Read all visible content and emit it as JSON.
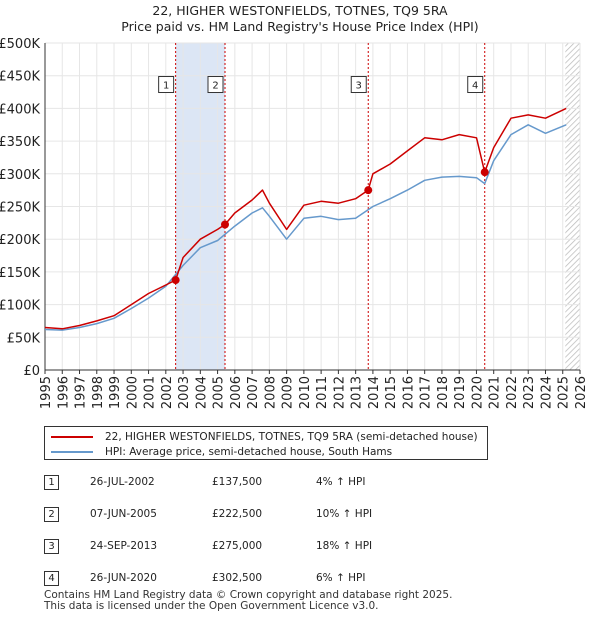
{
  "title_line1": "22, HIGHER WESTONFIELDS, TOTNES, TQ9 5RA",
  "title_line2": "Price paid vs. HM Land Registry's House Price Index (HPI)",
  "legend": {
    "series1": "22, HIGHER WESTONFIELDS, TOTNES, TQ9 5RA (semi-detached house)",
    "series2": "HPI: Average price, semi-detached house, South Hams"
  },
  "sales": [
    {
      "num": "1",
      "date": "26-JUL-2002",
      "price": "£137,500",
      "hpi": "4% ↑ HPI"
    },
    {
      "num": "2",
      "date": "07-JUN-2005",
      "price": "£222,500",
      "hpi": "10% ↑ HPI"
    },
    {
      "num": "3",
      "date": "24-SEP-2013",
      "price": "£275,000",
      "hpi": "18% ↑ HPI"
    },
    {
      "num": "4",
      "date": "26-JUN-2020",
      "price": "£302,500",
      "hpi": "6% ↑ HPI"
    }
  ],
  "footer_line1": "Contains HM Land Registry data © Crown copyright and database right 2025.",
  "footer_line2": "This data is licensed under the Open Government Licence v3.0.",
  "colors": {
    "red": "#cc0000",
    "blue": "#6699cc",
    "shade": "#dce6f5",
    "grid": "#e6e6e6"
  },
  "chart_data": {
    "type": "line",
    "xlim": [
      1995,
      2026
    ],
    "ylim": [
      0,
      500000
    ],
    "x_ticks": [
      "1995",
      "1996",
      "1997",
      "1998",
      "1999",
      "2000",
      "2001",
      "2002",
      "2003",
      "2004",
      "2005",
      "2006",
      "2007",
      "2008",
      "2009",
      "2010",
      "2011",
      "2012",
      "2013",
      "2014",
      "2015",
      "2016",
      "2017",
      "2018",
      "2019",
      "2020",
      "2021",
      "2022",
      "2023",
      "2024",
      "2025",
      "2026"
    ],
    "y_ticks": [
      {
        "value": 0,
        "label": "£0"
      },
      {
        "value": 50000,
        "label": "£50K"
      },
      {
        "value": 100000,
        "label": "£100K"
      },
      {
        "value": 150000,
        "label": "£150K"
      },
      {
        "value": 200000,
        "label": "£200K"
      },
      {
        "value": 250000,
        "label": "£250K"
      },
      {
        "value": 300000,
        "label": "£300K"
      },
      {
        "value": 350000,
        "label": "£350K"
      },
      {
        "value": 400000,
        "label": "£400K"
      },
      {
        "value": 450000,
        "label": "£450K"
      },
      {
        "value": 500000,
        "label": "£500K"
      }
    ],
    "shaded_ranges": [
      [
        2002.57,
        2005.43
      ],
      [
        2025.15,
        2026
      ]
    ],
    "sale_markers": [
      {
        "label": "1",
        "x": 2002.57,
        "y": 137500
      },
      {
        "label": "2",
        "x": 2005.43,
        "y": 222500
      },
      {
        "label": "3",
        "x": 2013.73,
        "y": 275000
      },
      {
        "label": "4",
        "x": 2020.48,
        "y": 302500
      }
    ],
    "series": [
      {
        "name": "22, HIGHER WESTONFIELDS, TOTNES, TQ9 5RA (semi-detached house)",
        "x": [
          1995,
          1996,
          1997,
          1998,
          1999,
          2000,
          2001,
          2002,
          2002.57,
          2003,
          2004,
          2005,
          2005.43,
          2006,
          2007,
          2007.6,
          2008,
          2009,
          2010,
          2011,
          2012,
          2013,
          2013.73,
          2014,
          2015,
          2016,
          2017,
          2018,
          2019,
          2020,
          2020.48,
          2021,
          2022,
          2023,
          2024,
          2025.2
        ],
        "values": [
          65000,
          63000,
          68000,
          75000,
          83000,
          100000,
          117000,
          130000,
          137500,
          172000,
          200000,
          215000,
          222500,
          240000,
          260000,
          275000,
          255000,
          215000,
          252000,
          258000,
          255000,
          262000,
          275000,
          300000,
          315000,
          335000,
          355000,
          352000,
          360000,
          355000,
          302500,
          340000,
          385000,
          390000,
          385000,
          400000
        ]
      },
      {
        "name": "HPI: Average price, semi-detached house, South Hams",
        "x": [
          1995,
          1996,
          1997,
          1998,
          1999,
          2000,
          2001,
          2002,
          2003,
          2004,
          2005,
          2006,
          2007,
          2007.6,
          2008,
          2009,
          2010,
          2011,
          2012,
          2013,
          2014,
          2015,
          2016,
          2017,
          2018,
          2019,
          2020,
          2020.48,
          2021,
          2022,
          2023,
          2024,
          2025.2
        ],
        "values": [
          62000,
          61000,
          65000,
          71000,
          79000,
          94000,
          110000,
          128000,
          160000,
          187000,
          198000,
          220000,
          240000,
          248000,
          235000,
          200000,
          232000,
          235000,
          230000,
          232000,
          250000,
          262000,
          275000,
          290000,
          295000,
          296000,
          294000,
          285000,
          320000,
          360000,
          375000,
          362000,
          375000
        ]
      }
    ]
  }
}
